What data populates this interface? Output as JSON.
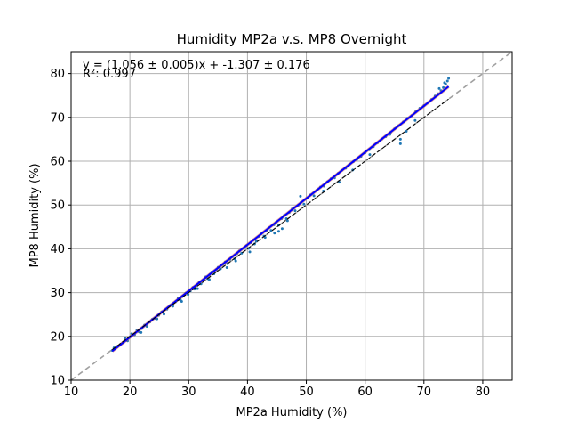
{
  "chart_data": {
    "type": "scatter",
    "title": "Humidity MP2a v.s. MP8 Overnight",
    "xlabel": "MP2a Humidity (%)",
    "ylabel": "MP8 Humidity (%)",
    "xlim": [
      10,
      85
    ],
    "ylim": [
      10,
      85
    ],
    "x_ticks": [
      10,
      20,
      30,
      40,
      50,
      60,
      70,
      80
    ],
    "y_ticks": [
      10,
      20,
      30,
      40,
      50,
      60,
      70,
      80
    ],
    "x_tick_labels": [
      "10",
      "20",
      "30",
      "40",
      "50",
      "60",
      "70",
      "80"
    ],
    "y_tick_labels": [
      "10",
      "20",
      "30",
      "40",
      "50",
      "60",
      "70",
      "80"
    ],
    "grid": true,
    "annotations": {
      "equation": "y = (1.056 ± 0.005)x + -1.307 ± 0.176",
      "r_squared": "R²: 0.997"
    },
    "fit": {
      "slope": 1.056,
      "intercept": -1.307,
      "x_range": [
        17,
        74.2
      ]
    },
    "identity_line": {
      "slope": 1,
      "intercept": 0
    },
    "points": [
      [
        17.0,
        16.8
      ],
      [
        17.3,
        17.4
      ],
      [
        17.8,
        17.7
      ],
      [
        18.4,
        18.2
      ],
      [
        18.9,
        18.6
      ],
      [
        19.2,
        19.5
      ],
      [
        19.6,
        19.0
      ],
      [
        20.0,
        19.9
      ],
      [
        20.3,
        20.6
      ],
      [
        20.8,
        20.4
      ],
      [
        21.2,
        21.4
      ],
      [
        21.6,
        21.0
      ],
      [
        22.0,
        21.8
      ],
      [
        22.5,
        22.6
      ],
      [
        22.9,
        22.3
      ],
      [
        23.4,
        23.3
      ],
      [
        23.8,
        23.9
      ],
      [
        24.3,
        24.1
      ],
      [
        24.9,
        24.8
      ],
      [
        25.4,
        25.6
      ],
      [
        25.8,
        25.1
      ],
      [
        26.3,
        26.2
      ],
      [
        26.9,
        27.1
      ],
      [
        27.3,
        26.9
      ],
      [
        27.8,
        27.9
      ],
      [
        28.2,
        28.7
      ],
      [
        28.6,
        28.3
      ],
      [
        29.0,
        29.2
      ],
      [
        29.5,
        29.9
      ],
      [
        29.9,
        29.6
      ],
      [
        30.3,
        30.4
      ],
      [
        30.7,
        31.2
      ],
      [
        31.0,
        30.8
      ],
      [
        31.4,
        31.7
      ],
      [
        31.8,
        32.4
      ],
      [
        32.1,
        32.0
      ],
      [
        32.5,
        32.9
      ],
      [
        32.9,
        33.6
      ],
      [
        33.2,
        33.2
      ],
      [
        33.6,
        34.1
      ],
      [
        33.9,
        34.7
      ],
      [
        34.3,
        34.3
      ],
      [
        34.7,
        35.2
      ],
      [
        35.0,
        35.8
      ],
      [
        35.4,
        35.4
      ],
      [
        35.8,
        36.4
      ],
      [
        36.2,
        37.0
      ],
      [
        36.6,
        36.6
      ],
      [
        37.0,
        37.6
      ],
      [
        37.4,
        38.2
      ],
      [
        37.8,
        37.7
      ],
      [
        38.2,
        38.9
      ],
      [
        38.6,
        39.5
      ],
      [
        39.0,
        39.0
      ],
      [
        39.4,
        40.2
      ],
      [
        39.8,
        40.7
      ],
      [
        40.2,
        40.1
      ],
      [
        40.6,
        41.4
      ],
      [
        41.0,
        42.0
      ],
      [
        41.5,
        41.7
      ],
      [
        41.9,
        42.8
      ],
      [
        42.3,
        43.4
      ],
      [
        42.8,
        42.9
      ],
      [
        43.2,
        44.1
      ],
      [
        43.6,
        44.8
      ],
      [
        44.0,
        44.2
      ],
      [
        44.5,
        45.5
      ],
      [
        44.9,
        46.1
      ],
      [
        45.3,
        45.4
      ],
      [
        45.8,
        46.9
      ],
      [
        46.2,
        47.6
      ],
      [
        46.6,
        46.9
      ],
      [
        47.1,
        48.3
      ],
      [
        47.6,
        49.1
      ],
      [
        48.1,
        48.7
      ],
      [
        48.6,
        49.9
      ],
      [
        49.1,
        50.6
      ],
      [
        49.6,
        50.2
      ],
      [
        50.2,
        51.6
      ],
      [
        50.7,
        52.3
      ],
      [
        51.3,
        52.1
      ],
      [
        51.8,
        53.4
      ],
      [
        52.4,
        54.1
      ],
      [
        53.0,
        54.3
      ],
      [
        53.6,
        55.3
      ],
      [
        54.2,
        56.0
      ],
      [
        54.8,
        56.2
      ],
      [
        55.4,
        57.2
      ],
      [
        56.0,
        57.9
      ],
      [
        56.7,
        58.4
      ],
      [
        57.3,
        59.2
      ],
      [
        58.0,
        59.9
      ],
      [
        58.6,
        60.4
      ],
      [
        59.3,
        61.1
      ],
      [
        60.0,
        61.9
      ],
      [
        60.7,
        62.6
      ],
      [
        61.4,
        63.3
      ],
      [
        62.1,
        64.2
      ],
      [
        62.8,
        65.0
      ],
      [
        63.5,
        65.6
      ],
      [
        64.3,
        66.5
      ],
      [
        65.0,
        67.4
      ],
      [
        65.7,
        68.1
      ],
      [
        66.5,
        69.0
      ],
      [
        67.2,
        69.8
      ],
      [
        67.9,
        70.4
      ],
      [
        68.6,
        71.3
      ],
      [
        69.3,
        72.1
      ],
      [
        70.0,
        72.7
      ],
      [
        70.7,
        73.4
      ],
      [
        71.3,
        74.1
      ],
      [
        71.9,
        74.9
      ],
      [
        72.4,
        75.4
      ],
      [
        72.9,
        76.1
      ],
      [
        73.3,
        76.8
      ],
      [
        73.7,
        77.6
      ],
      [
        74.0,
        78.3
      ],
      [
        74.2,
        78.9
      ],
      [
        73.5,
        77.9
      ],
      [
        72.6,
        76.6
      ],
      [
        33.5,
        33.0
      ],
      [
        36.5,
        35.7
      ],
      [
        38.0,
        37.2
      ],
      [
        40.4,
        39.3
      ],
      [
        43.0,
        42.6
      ],
      [
        44.6,
        43.6
      ],
      [
        45.3,
        44.0
      ],
      [
        45.9,
        44.6
      ],
      [
        46.8,
        46.4
      ],
      [
        49.0,
        52.0
      ],
      [
        55.6,
        55.2
      ],
      [
        57.9,
        58.0
      ],
      [
        60.8,
        61.5
      ],
      [
        66.0,
        64.0
      ],
      [
        66.0,
        65.0
      ],
      [
        67.0,
        66.8
      ],
      [
        68.5,
        69.3
      ],
      [
        21.9,
        20.9
      ],
      [
        24.6,
        24.0
      ],
      [
        28.8,
        28.0
      ],
      [
        31.5,
        30.9
      ],
      [
        41.2,
        41.1
      ],
      [
        52.9,
        53.2
      ],
      [
        64.2,
        66.1
      ]
    ],
    "colors": {
      "points": "#1f77b4",
      "fit_line": "#0000ff",
      "band": "#cd5c5c",
      "identity": "#a0a0a0",
      "grid": "#b0b0b0"
    }
  }
}
